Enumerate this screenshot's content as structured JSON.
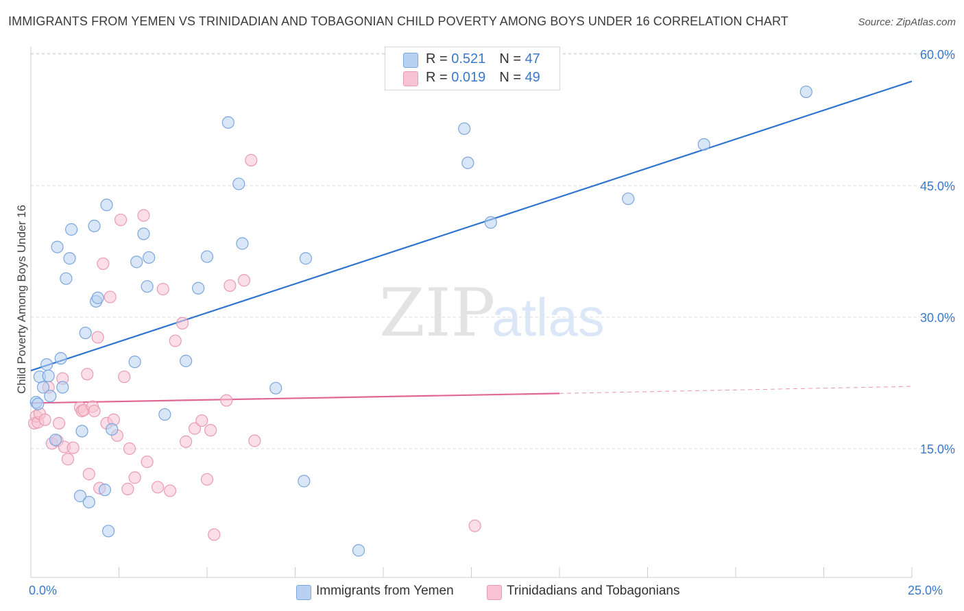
{
  "header": {
    "title": "IMMIGRANTS FROM YEMEN VS TRINIDADIAN AND TOBAGONIAN CHILD POVERTY AMONG BOYS UNDER 16 CORRELATION CHART",
    "source": "Source: ZipAtlas.com"
  },
  "watermark": {
    "zip": "ZIP",
    "atlas": "atlas"
  },
  "legend_top": [
    {
      "r_label": "R = ",
      "r_value": "0.521",
      "n_label": "N = ",
      "n_value": "47"
    },
    {
      "r_label": "R = ",
      "r_value": "0.019",
      "n_label": "N = ",
      "n_value": "49"
    }
  ],
  "legend_bottom": [
    {
      "label": "Immigrants from Yemen"
    },
    {
      "label": "Trinidadians and Tobagonians"
    }
  ],
  "colors": {
    "blue_fill": "#b8d1f2",
    "blue_stroke": "#7ba6dd",
    "blue_line": "#2f74cf",
    "pink_fill": "#f7c3d4",
    "pink_stroke": "#e99ab4",
    "pink_line": "#e06794",
    "tick_text": "#3a78cc",
    "grid": "#d9d9d9"
  },
  "chart_data": {
    "type": "scatter",
    "title": "IMMIGRANTS FROM YEMEN VS TRINIDADIAN AND TOBAGONIAN CHILD POVERTY AMONG BOYS UNDER 16 CORRELATION CHART",
    "xlabel": "",
    "ylabel": "Child Poverty Among Boys Under 16",
    "xlim": [
      0,
      25
    ],
    "ylim": [
      0,
      63
    ],
    "x_tick_labels": [
      "0.0%",
      "25.0%"
    ],
    "y_ticks": [
      15,
      30,
      45,
      60
    ],
    "y_tick_labels": [
      "15.0%",
      "30.0%",
      "45.0%",
      "60.0%"
    ],
    "grid": true,
    "legend_position": "top-center",
    "series": [
      {
        "name": "Immigrants from Yemen",
        "r": 0.521,
        "n": 47,
        "trend": {
          "x": [
            0.0,
            25.0
          ],
          "y": [
            23.9,
            56.9
          ]
        },
        "points": [
          [
            0.15,
            20.3
          ],
          [
            0.25,
            23.2
          ],
          [
            0.35,
            22.0
          ],
          [
            0.45,
            24.6
          ],
          [
            0.5,
            23.3
          ],
          [
            0.55,
            21.0
          ],
          [
            0.75,
            38.0
          ],
          [
            0.85,
            25.3
          ],
          [
            0.9,
            22.0
          ],
          [
            0.7,
            16.0
          ],
          [
            1.0,
            34.4
          ],
          [
            1.1,
            36.7
          ],
          [
            1.15,
            40.0
          ],
          [
            1.4,
            9.6
          ],
          [
            1.45,
            17.0
          ],
          [
            1.55,
            28.2
          ],
          [
            1.65,
            8.9
          ],
          [
            1.8,
            40.4
          ],
          [
            1.85,
            31.8
          ],
          [
            1.9,
            32.2
          ],
          [
            2.1,
            10.3
          ],
          [
            2.15,
            42.8
          ],
          [
            2.2,
            5.6
          ],
          [
            2.3,
            17.2
          ],
          [
            2.95,
            24.9
          ],
          [
            3.0,
            36.3
          ],
          [
            3.2,
            39.5
          ],
          [
            3.3,
            33.5
          ],
          [
            3.35,
            36.8
          ],
          [
            3.8,
            18.9
          ],
          [
            4.4,
            25.0
          ],
          [
            4.75,
            33.3
          ],
          [
            5.0,
            36.9
          ],
          [
            5.6,
            52.2
          ],
          [
            5.9,
            45.2
          ],
          [
            6.0,
            38.4
          ],
          [
            6.95,
            21.9
          ],
          [
            7.8,
            36.7
          ],
          [
            7.75,
            11.3
          ],
          [
            9.3,
            3.4
          ],
          [
            12.3,
            51.5
          ],
          [
            12.4,
            47.6
          ],
          [
            13.05,
            40.8
          ],
          [
            16.95,
            43.5
          ],
          [
            19.1,
            49.7
          ],
          [
            22.0,
            55.7
          ],
          [
            0.2,
            20.1
          ]
        ]
      },
      {
        "name": "Trinidadians and Tobagonians",
        "r": 0.019,
        "n": 49,
        "trend": {
          "x": [
            0.0,
            15.0
          ],
          "y": [
            20.2,
            21.3
          ],
          "dashed_x": [
            15.0,
            25.0
          ],
          "dashed_y": [
            21.3,
            22.1
          ]
        },
        "points": [
          [
            0.1,
            17.9
          ],
          [
            0.15,
            18.7
          ],
          [
            0.2,
            18.0
          ],
          [
            0.25,
            19.0
          ],
          [
            0.4,
            18.3
          ],
          [
            0.5,
            22.0
          ],
          [
            0.6,
            15.6
          ],
          [
            0.75,
            15.9
          ],
          [
            0.8,
            17.9
          ],
          [
            0.9,
            23.0
          ],
          [
            0.95,
            15.2
          ],
          [
            1.05,
            13.8
          ],
          [
            1.2,
            15.1
          ],
          [
            1.4,
            19.7
          ],
          [
            1.45,
            19.3
          ],
          [
            1.5,
            19.4
          ],
          [
            1.6,
            23.5
          ],
          [
            1.65,
            12.1
          ],
          [
            1.75,
            19.8
          ],
          [
            1.8,
            19.3
          ],
          [
            1.9,
            27.7
          ],
          [
            1.95,
            10.5
          ],
          [
            2.05,
            36.1
          ],
          [
            2.15,
            17.9
          ],
          [
            2.25,
            32.3
          ],
          [
            2.35,
            18.3
          ],
          [
            2.45,
            16.5
          ],
          [
            2.55,
            41.1
          ],
          [
            2.65,
            23.2
          ],
          [
            2.75,
            10.4
          ],
          [
            2.8,
            15.0
          ],
          [
            2.95,
            11.7
          ],
          [
            3.2,
            41.6
          ],
          [
            3.3,
            13.5
          ],
          [
            3.6,
            10.6
          ],
          [
            3.75,
            33.2
          ],
          [
            3.95,
            10.2
          ],
          [
            4.1,
            27.3
          ],
          [
            4.3,
            29.3
          ],
          [
            4.4,
            15.8
          ],
          [
            4.65,
            17.3
          ],
          [
            4.85,
            18.2
          ],
          [
            5.0,
            11.5
          ],
          [
            5.1,
            17.1
          ],
          [
            5.2,
            5.2
          ],
          [
            5.55,
            20.5
          ],
          [
            5.65,
            33.6
          ],
          [
            6.05,
            34.2
          ],
          [
            6.35,
            15.9
          ]
        ],
        "extra_points": [
          [
            6.25,
            47.9
          ],
          [
            12.6,
            6.2
          ]
        ]
      }
    ]
  }
}
